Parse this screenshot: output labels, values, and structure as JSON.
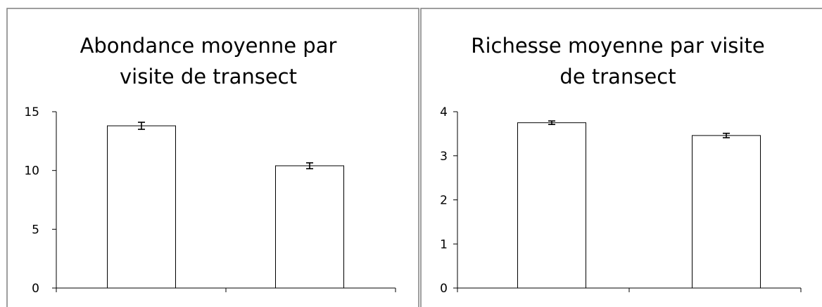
{
  "chart_data": [
    {
      "type": "bar",
      "title_lines": [
        "Abondance moyenne par",
        "visite de transect"
      ],
      "categories": [
        "",
        ""
      ],
      "values": [
        13.8,
        10.4
      ],
      "error": [
        0.3,
        0.25
      ],
      "ylim": [
        0,
        15
      ],
      "yticks": [
        0,
        5,
        10,
        15
      ],
      "grid": false,
      "legend": "none",
      "bar_fill": "#ffffff",
      "bar_stroke": "#000000"
    },
    {
      "type": "bar",
      "title_lines": [
        "Richesse moyenne par visite",
        "de transect"
      ],
      "categories": [
        "",
        ""
      ],
      "values": [
        3.75,
        3.46
      ],
      "error": [
        0.04,
        0.05
      ],
      "ylim": [
        0,
        4
      ],
      "yticks": [
        0,
        1,
        2,
        3,
        4
      ],
      "grid": false,
      "legend": "none",
      "bar_fill": "#ffffff",
      "bar_stroke": "#000000"
    }
  ]
}
